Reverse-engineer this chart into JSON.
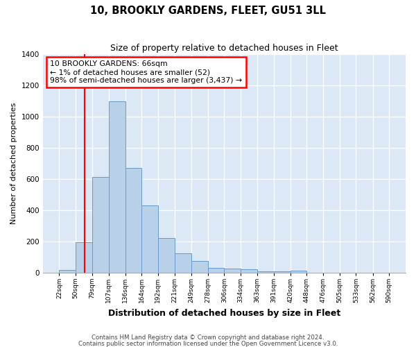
{
  "title": "10, BROOKLY GARDENS, FLEET, GU51 3LL",
  "subtitle": "Size of property relative to detached houses in Fleet",
  "xlabel": "Distribution of detached houses by size in Fleet",
  "ylabel": "Number of detached properties",
  "bar_color": "#b8d0e8",
  "bar_edge_color": "#6699cc",
  "bg_color": "#dce8f5",
  "fig_color": "#ffffff",
  "grid_color": "#ffffff",
  "red_line_x": 66,
  "annotation_box_text": "10 BROOKLY GARDENS: 66sqm\n← 1% of detached houses are smaller (52)\n98% of semi-detached houses are larger (3,437) →",
  "footer_line1": "Contains HM Land Registry data © Crown copyright and database right 2024.",
  "footer_line2": "Contains public sector information licensed under the Open Government Licence v3.0.",
  "bins": [
    22,
    50,
    79,
    107,
    136,
    164,
    192,
    221,
    249,
    278,
    306,
    334,
    363,
    391,
    420,
    448,
    476,
    505,
    533,
    562,
    590
  ],
  "counts": [
    15,
    195,
    615,
    1100,
    670,
    430,
    220,
    125,
    75,
    30,
    25,
    20,
    10,
    8,
    12,
    0,
    0,
    0,
    0,
    0
  ],
  "ylim": [
    0,
    1400
  ],
  "yticks": [
    0,
    200,
    400,
    600,
    800,
    1000,
    1200,
    1400
  ]
}
